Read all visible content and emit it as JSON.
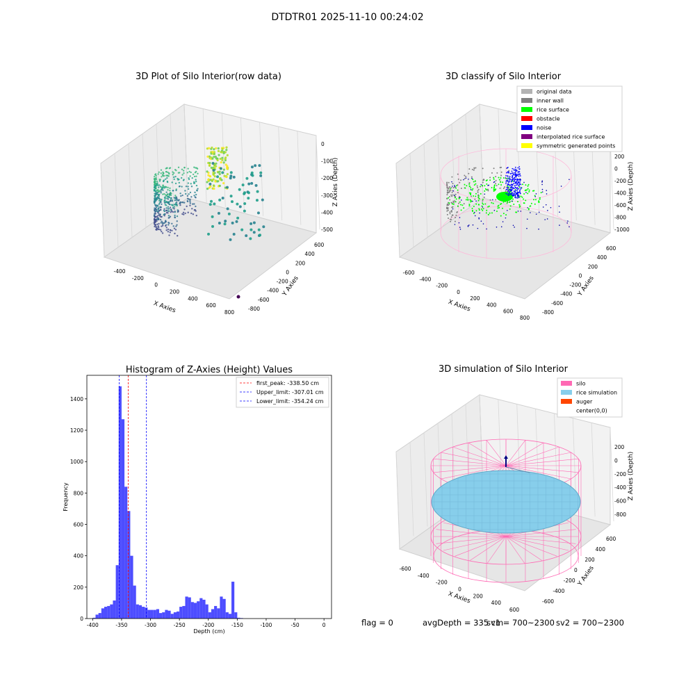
{
  "suptitle": "DTDTR01 2025-11-10 00:24:02",
  "panel1": {
    "title": "3D Plot of Silo Interior(row data)",
    "xlabel": "X Axies",
    "ylabel": "Y Axies",
    "zlabel": "Z Axies (Depth)",
    "xticks": [
      "-400",
      "-200",
      "0",
      "200",
      "400",
      "600",
      "800"
    ],
    "yticks": [
      "600",
      "400",
      "200",
      "0",
      "-200",
      "-400",
      "-600",
      "-800"
    ],
    "zticks": [
      "0",
      "-100",
      "-200",
      "-300",
      "-400",
      "-500"
    ]
  },
  "panel2": {
    "title": "3D classify of Silo Interior",
    "xlabel": "X Axies",
    "ylabel": "Y Axies",
    "zlabel": "Z Axies (Depth)",
    "xticks": [
      "-600",
      "-400",
      "-200",
      "0",
      "200",
      "400",
      "600",
      "800"
    ],
    "yticks": [
      "600",
      "400",
      "200",
      "0",
      "-200",
      "-400",
      "-600",
      "-800"
    ],
    "zticks": [
      "200",
      "0",
      "-200",
      "-400",
      "-600",
      "-800",
      "-1000"
    ],
    "legend": [
      {
        "label": "original data",
        "color": "#b3b3b3"
      },
      {
        "label": "inner wall",
        "color": "#808080"
      },
      {
        "label": "rice surface",
        "color": "#00ff00"
      },
      {
        "label": "obstacle",
        "color": "#ff0000"
      },
      {
        "label": "noise",
        "color": "#0000ff"
      },
      {
        "label": "interpolated rice surface",
        "color": "#800080"
      },
      {
        "label": "symmetric generated points",
        "color": "#ffff00"
      }
    ]
  },
  "panel4": {
    "title": "3D simulation of Silo Interior",
    "xlabel": "X Axies",
    "ylabel": "Y Axies",
    "zlabel": "Z Axies (Depth)",
    "xticks": [
      "-600",
      "-400",
      "-200",
      "0",
      "200",
      "400",
      "600"
    ],
    "yticks": [
      "600",
      "400",
      "200",
      "0",
      "-200",
      "-400",
      "-600"
    ],
    "zticks": [
      "200",
      "0",
      "-200",
      "-400",
      "-600",
      "-800"
    ],
    "legend": [
      {
        "label": "silo",
        "color": "#ff69b4"
      },
      {
        "label": "rice simulation",
        "color": "#87ceeb"
      },
      {
        "label": "auger",
        "color": "#ff4500"
      },
      {
        "label": "center(0,0)",
        "color": ""
      }
    ]
  },
  "footer": {
    "flag": "flag = 0",
    "avg": "avgDepth = 335 cm",
    "sv1": "sv1 = 700~2300",
    "sv2": "sv2 = 700~2300"
  },
  "chart_data": [
    {
      "type": "histogram",
      "title": "Histogram of Z-Axies (Height) Values",
      "xlabel": "Depth (cm)",
      "ylabel": "Frequency",
      "xlim": [
        -410,
        13
      ],
      "ylim": [
        0,
        1550
      ],
      "xticks": [
        -400,
        -350,
        -300,
        -250,
        -200,
        -150,
        -100,
        -50,
        0
      ],
      "yticks": [
        0,
        200,
        400,
        600,
        800,
        1000,
        1200,
        1400
      ],
      "bin_width": 5,
      "bins": [
        [
          -400,
          5
        ],
        [
          -395,
          25
        ],
        [
          -390,
          35
        ],
        [
          -385,
          65
        ],
        [
          -380,
          75
        ],
        [
          -375,
          80
        ],
        [
          -370,
          90
        ],
        [
          -365,
          115
        ],
        [
          -360,
          340
        ],
        [
          -355,
          1480
        ],
        [
          -350,
          1270
        ],
        [
          -345,
          840
        ],
        [
          -340,
          685
        ],
        [
          -335,
          400
        ],
        [
          -330,
          210
        ],
        [
          -325,
          90
        ],
        [
          -320,
          85
        ],
        [
          -315,
          75
        ],
        [
          -310,
          70
        ],
        [
          -305,
          55
        ],
        [
          -300,
          55
        ],
        [
          -295,
          55
        ],
        [
          -290,
          60
        ],
        [
          -285,
          35
        ],
        [
          -280,
          40
        ],
        [
          -275,
          55
        ],
        [
          -270,
          50
        ],
        [
          -265,
          30
        ],
        [
          -260,
          40
        ],
        [
          -255,
          45
        ],
        [
          -250,
          75
        ],
        [
          -245,
          80
        ],
        [
          -240,
          140
        ],
        [
          -235,
          135
        ],
        [
          -230,
          105
        ],
        [
          -225,
          100
        ],
        [
          -220,
          110
        ],
        [
          -215,
          130
        ],
        [
          -210,
          120
        ],
        [
          -205,
          90
        ],
        [
          -200,
          40
        ],
        [
          -195,
          60
        ],
        [
          -190,
          80
        ],
        [
          -185,
          65
        ],
        [
          -180,
          140
        ],
        [
          -175,
          125
        ],
        [
          -170,
          40
        ],
        [
          -165,
          30
        ],
        [
          -160,
          235
        ],
        [
          -155,
          40
        ],
        [
          -150,
          5
        ],
        [
          -145,
          3
        ]
      ],
      "vlines": [
        {
          "x": -338.5,
          "label": "first_peak: -338.50 cm",
          "color": "#ff0000"
        },
        {
          "x": -307.01,
          "label": "Upper_limit: -307.01 cm",
          "color": "#0000ff"
        },
        {
          "x": -354.24,
          "label": "Lower_limit: -354.24 cm",
          "color": "#0000ff"
        }
      ]
    }
  ]
}
